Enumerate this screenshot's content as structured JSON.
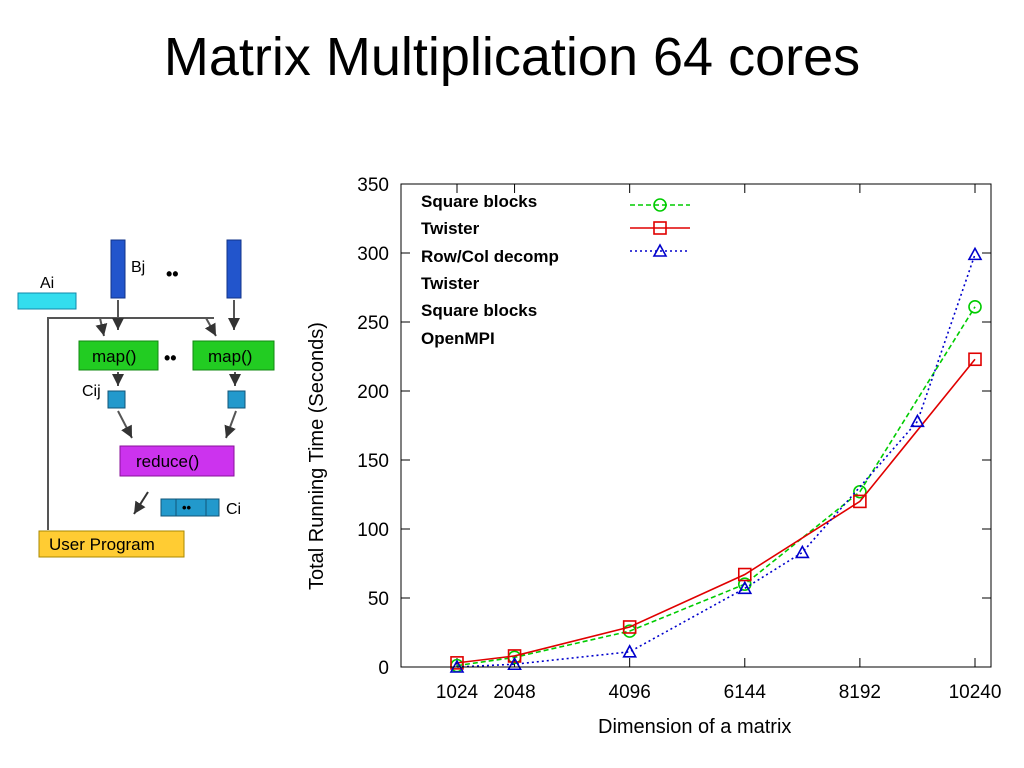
{
  "slide": {
    "title": "Matrix Multiplication 64 cores"
  },
  "diagram": {
    "a_label": "Ai",
    "b_label": "Bj",
    "dots": "••",
    "map_label": "map()",
    "c_label": "Cij",
    "reduce_label": "reduce()",
    "ci_label": "Ci",
    "user_program_label": "User Program",
    "colors": {
      "input_block": "#2255cc",
      "a_block": "#33ddee",
      "map": "#22cc22",
      "reduce": "#cc33ee",
      "output_block": "#2299cc",
      "user_program": "#ffcc33"
    }
  },
  "legend_lines": [
    "Square blocks",
    "Twister",
    "Row/Col decomp",
    "Twister",
    "Square blocks",
    "OpenMPI"
  ],
  "chart_data": {
    "type": "line",
    "xlabel": "Dimension of a matrix",
    "ylabel": "Total Running Time (Seconds)",
    "xlim": [
      0,
      10240
    ],
    "ylim": [
      0,
      350
    ],
    "x_ticks": [
      1024,
      2048,
      4096,
      6144,
      8192,
      10240
    ],
    "y_ticks": [
      0,
      50,
      100,
      150,
      200,
      250,
      300,
      350
    ],
    "grid": false,
    "legend_position": "top-left",
    "series": [
      {
        "color": "#00cc00",
        "style": "dashed",
        "marker": "circle",
        "x": [
          1024,
          2048,
          4096,
          6144,
          8192,
          10240
        ],
        "y": [
          1,
          7,
          26,
          60,
          127,
          261
        ]
      },
      {
        "color": "#e00000",
        "style": "solid",
        "marker": "square",
        "x": [
          1024,
          2048,
          4096,
          6144,
          8192,
          10240
        ],
        "y": [
          3,
          8,
          29,
          67,
          120,
          223
        ]
      },
      {
        "color": "#0000cc",
        "style": "dotted",
        "marker": "triangle",
        "x": [
          1024,
          2048,
          4096,
          6144,
          7168,
          9216,
          10240
        ],
        "y": [
          0,
          2,
          11,
          57,
          83,
          178,
          299
        ]
      }
    ]
  }
}
